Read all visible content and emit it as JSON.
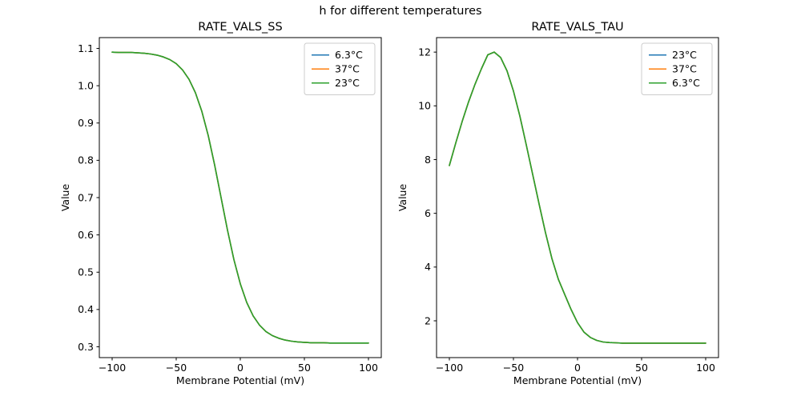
{
  "figure": {
    "suptitle": "h for different temperatures"
  },
  "colors": {
    "c_blue": "#1f77b4",
    "c_orange": "#ff7f0e",
    "c_green": "#2ca02c",
    "spine": "#000000",
    "legend_edge": "#cccccc"
  },
  "chart_data": [
    {
      "type": "line",
      "title": "RATE_VALS_SS",
      "xlabel": "Membrane Potential (mV)",
      "ylabel": "Value",
      "xlim": [
        -110,
        110
      ],
      "ylim": [
        0.271,
        1.129
      ],
      "xticks": [
        -100,
        -50,
        0,
        50,
        100
      ],
      "xtick_labels": [
        "−100",
        "−50",
        "0",
        "50",
        "100"
      ],
      "yticks": [
        0.3,
        0.4,
        0.5,
        0.6,
        0.7,
        0.8,
        0.9,
        1.0,
        1.1
      ],
      "ytick_labels": [
        "0.3",
        "0.4",
        "0.5",
        "0.6",
        "0.7",
        "0.8",
        "0.9",
        "1.0",
        "1.1"
      ],
      "grid": false,
      "legend_position": "upper right",
      "series_overlap": true,
      "x": [
        -100,
        -95,
        -90,
        -85,
        -80,
        -75,
        -70,
        -65,
        -60,
        -55,
        -50,
        -45,
        -40,
        -35,
        -30,
        -25,
        -20,
        -15,
        -10,
        -5,
        0,
        5,
        10,
        15,
        20,
        25,
        30,
        35,
        40,
        45,
        50,
        55,
        60,
        65,
        70,
        75,
        80,
        85,
        90,
        95,
        100
      ],
      "series": [
        {
          "name": "6.3°C",
          "color": "#1f77b4",
          "values": [
            1.09,
            1.089,
            1.089,
            1.089,
            1.088,
            1.087,
            1.085,
            1.082,
            1.077,
            1.07,
            1.059,
            1.042,
            1.017,
            0.981,
            0.931,
            0.866,
            0.787,
            0.7,
            0.613,
            0.534,
            0.469,
            0.419,
            0.383,
            0.358,
            0.341,
            0.33,
            0.323,
            0.318,
            0.315,
            0.313,
            0.312,
            0.311,
            0.311,
            0.311,
            0.31,
            0.31,
            0.31,
            0.31,
            0.31,
            0.31,
            0.31
          ]
        },
        {
          "name": "37°C",
          "color": "#ff7f0e",
          "values": [
            1.09,
            1.089,
            1.089,
            1.089,
            1.088,
            1.087,
            1.085,
            1.082,
            1.077,
            1.07,
            1.059,
            1.042,
            1.017,
            0.981,
            0.931,
            0.866,
            0.787,
            0.7,
            0.613,
            0.534,
            0.469,
            0.419,
            0.383,
            0.358,
            0.341,
            0.33,
            0.323,
            0.318,
            0.315,
            0.313,
            0.312,
            0.311,
            0.311,
            0.311,
            0.31,
            0.31,
            0.31,
            0.31,
            0.31,
            0.31,
            0.31
          ]
        },
        {
          "name": "23°C",
          "color": "#2ca02c",
          "values": [
            1.09,
            1.089,
            1.089,
            1.089,
            1.088,
            1.087,
            1.085,
            1.082,
            1.077,
            1.07,
            1.059,
            1.042,
            1.017,
            0.981,
            0.931,
            0.866,
            0.787,
            0.7,
            0.613,
            0.534,
            0.469,
            0.419,
            0.383,
            0.358,
            0.341,
            0.33,
            0.323,
            0.318,
            0.315,
            0.313,
            0.312,
            0.311,
            0.311,
            0.311,
            0.31,
            0.31,
            0.31,
            0.31,
            0.31,
            0.31,
            0.31
          ]
        }
      ]
    },
    {
      "type": "line",
      "title": "RATE_VALS_TAU",
      "xlabel": "Membrane Potential (mV)",
      "ylabel": "Value",
      "xlim": [
        -110,
        110
      ],
      "ylim": [
        0.63,
        12.54
      ],
      "xticks": [
        -100,
        -50,
        0,
        50,
        100
      ],
      "xtick_labels": [
        "−100",
        "−50",
        "0",
        "50",
        "100"
      ],
      "yticks": [
        2,
        4,
        6,
        8,
        10,
        12
      ],
      "ytick_labels": [
        "2",
        "4",
        "6",
        "8",
        "10",
        "12"
      ],
      "grid": false,
      "legend_position": "upper right",
      "series_overlap": true,
      "x": [
        -100,
        -95,
        -90,
        -85,
        -80,
        -75,
        -70,
        -65,
        -60,
        -55,
        -50,
        -45,
        -40,
        -35,
        -30,
        -25,
        -20,
        -15,
        -10,
        -5,
        0,
        5,
        10,
        15,
        20,
        25,
        30,
        35,
        40,
        45,
        50,
        55,
        60,
        65,
        70,
        75,
        80,
        85,
        90,
        95,
        100
      ],
      "series": [
        {
          "name": "23°C",
          "color": "#1f77b4",
          "values": [
            7.78,
            8.62,
            9.42,
            10.15,
            10.8,
            11.38,
            11.9,
            12.0,
            11.8,
            11.3,
            10.55,
            9.62,
            8.55,
            7.45,
            6.35,
            5.28,
            4.32,
            3.55,
            2.98,
            2.42,
            1.93,
            1.58,
            1.38,
            1.27,
            1.21,
            1.19,
            1.18,
            1.17,
            1.17,
            1.17,
            1.17,
            1.17,
            1.17,
            1.17,
            1.17,
            1.17,
            1.17,
            1.17,
            1.17,
            1.17,
            1.17
          ]
        },
        {
          "name": "37°C",
          "color": "#ff7f0e",
          "values": [
            7.78,
            8.62,
            9.42,
            10.15,
            10.8,
            11.38,
            11.9,
            12.0,
            11.8,
            11.3,
            10.55,
            9.62,
            8.55,
            7.45,
            6.35,
            5.28,
            4.32,
            3.55,
            2.98,
            2.42,
            1.93,
            1.58,
            1.38,
            1.27,
            1.21,
            1.19,
            1.18,
            1.17,
            1.17,
            1.17,
            1.17,
            1.17,
            1.17,
            1.17,
            1.17,
            1.17,
            1.17,
            1.17,
            1.17,
            1.17,
            1.17
          ]
        },
        {
          "name": "6.3°C",
          "color": "#2ca02c",
          "values": [
            7.78,
            8.62,
            9.42,
            10.15,
            10.8,
            11.38,
            11.9,
            12.0,
            11.8,
            11.3,
            10.55,
            9.62,
            8.55,
            7.45,
            6.35,
            5.28,
            4.32,
            3.55,
            2.98,
            2.42,
            1.93,
            1.58,
            1.38,
            1.27,
            1.21,
            1.19,
            1.18,
            1.17,
            1.17,
            1.17,
            1.17,
            1.17,
            1.17,
            1.17,
            1.17,
            1.17,
            1.17,
            1.17,
            1.17,
            1.17,
            1.17
          ]
        }
      ]
    }
  ]
}
